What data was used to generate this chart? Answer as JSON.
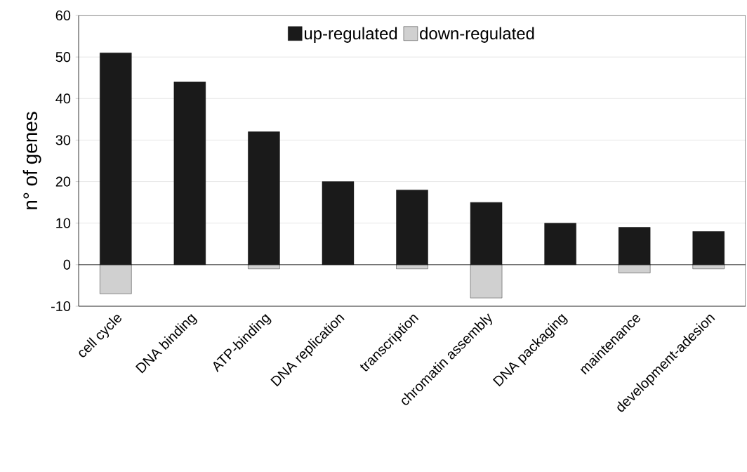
{
  "chart_data": {
    "type": "bar",
    "stacked": true,
    "ylabel": "n° of genes",
    "categories": [
      "cell cycle",
      "DNA binding",
      "ATP-binding",
      "DNA replication",
      "transcription",
      "chromatin assembly",
      "DNA packaging",
      "maintenance",
      "development-adesion"
    ],
    "series": [
      {
        "name": "up-regulated",
        "color": "#1a1a1a",
        "values": [
          51,
          44,
          32,
          20,
          18,
          15,
          10,
          9,
          8
        ]
      },
      {
        "name": "down-regulated",
        "color": "#d0d0d0",
        "values": [
          -7,
          null,
          -1,
          null,
          -1,
          -8,
          null,
          -2,
          -1
        ]
      }
    ],
    "ylim": [
      -10,
      60
    ],
    "yticks": [
      -10,
      0,
      10,
      20,
      30,
      40,
      50,
      60
    ],
    "grid": "y",
    "legend": "top"
  }
}
